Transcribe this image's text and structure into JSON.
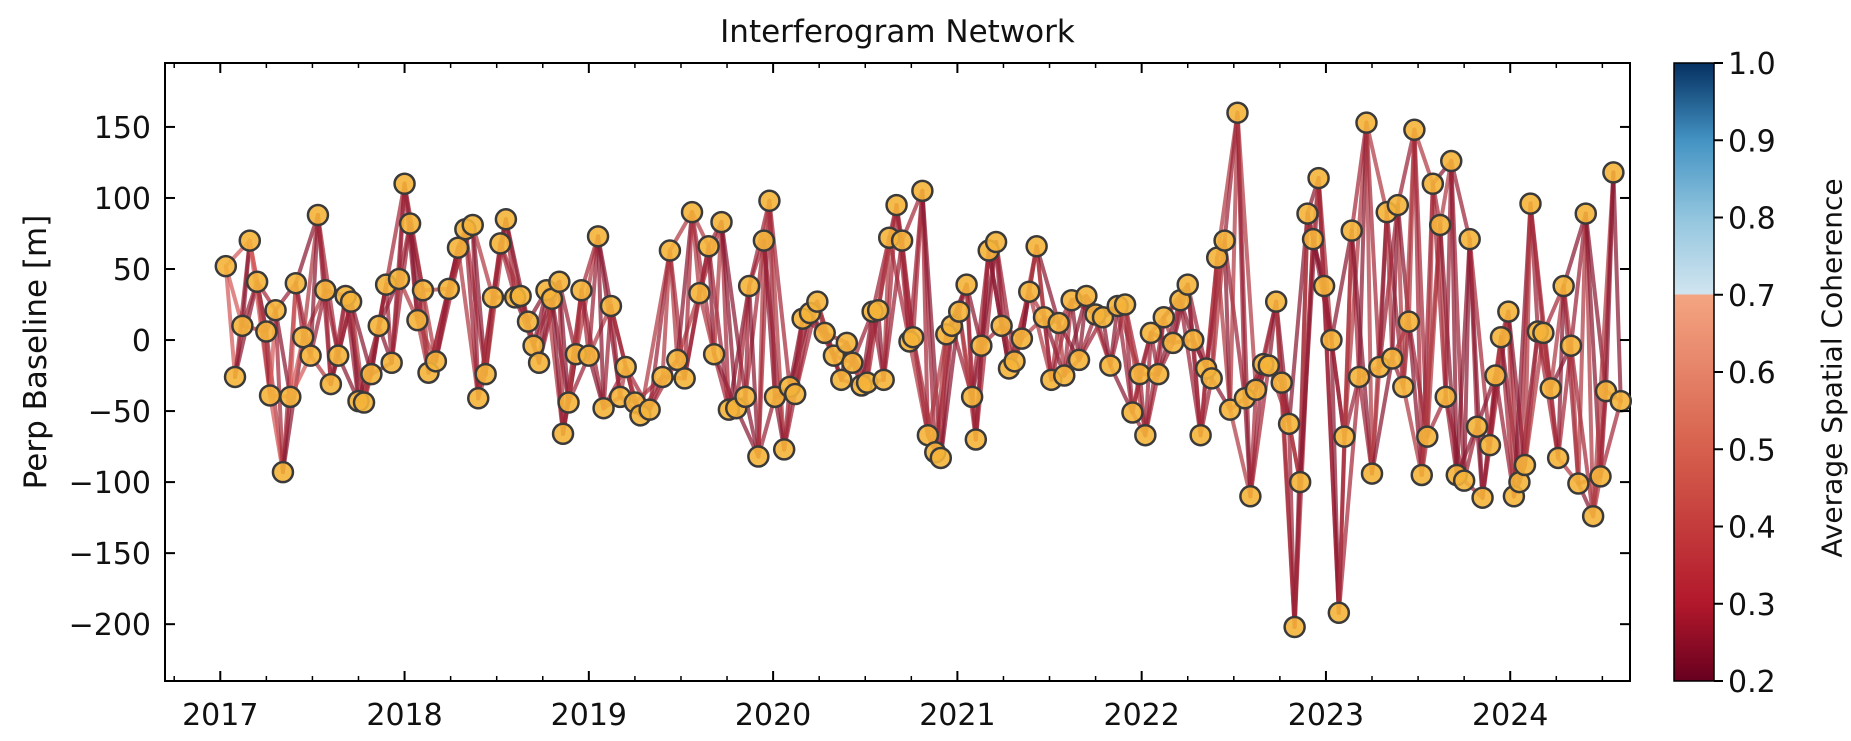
{
  "chart_data": {
    "type": "scatter",
    "title": "Interferogram Network",
    "xlabel": "",
    "ylabel": "Perp Baseline [m]",
    "xlim": [
      2016.7,
      2024.65
    ],
    "ylim": [
      -240,
      195
    ],
    "xticks": [
      2017,
      2018,
      2019,
      2020,
      2021,
      2022,
      2023,
      2024
    ],
    "yticks": [
      150,
      100,
      50,
      0,
      -50,
      -100,
      -150,
      -200
    ],
    "colorbar": {
      "label": "Average Spatial Coherence",
      "range": [
        0.2,
        1.0
      ],
      "ticks": [
        "1.0",
        "0.9",
        "0.8",
        "0.7",
        "0.6",
        "0.5",
        "0.4",
        "0.3",
        "0.2"
      ],
      "visible_range": [
        0.2,
        0.7
      ]
    },
    "node_color": "#f5b43a",
    "node_edge": "#3a3a3a",
    "points": [
      [
        2017.03,
        52
      ],
      [
        2017.08,
        -26
      ],
      [
        2017.12,
        10
      ],
      [
        2017.16,
        70
      ],
      [
        2017.2,
        41
      ],
      [
        2017.25,
        6
      ],
      [
        2017.27,
        -39
      ],
      [
        2017.3,
        21
      ],
      [
        2017.34,
        -93
      ],
      [
        2017.38,
        -40
      ],
      [
        2017.41,
        40
      ],
      [
        2017.45,
        2
      ],
      [
        2017.49,
        -11
      ],
      [
        2017.53,
        88
      ],
      [
        2017.57,
        35
      ],
      [
        2017.6,
        -31
      ],
      [
        2017.64,
        -11
      ],
      [
        2017.68,
        31
      ],
      [
        2017.71,
        27
      ],
      [
        2017.75,
        -43
      ],
      [
        2017.78,
        -44
      ],
      [
        2017.82,
        -24
      ],
      [
        2017.86,
        10
      ],
      [
        2017.9,
        39
      ],
      [
        2017.93,
        -16
      ],
      [
        2017.97,
        43
      ],
      [
        2018.0,
        110
      ],
      [
        2018.03,
        82
      ],
      [
        2018.07,
        14
      ],
      [
        2018.1,
        35
      ],
      [
        2018.13,
        -23
      ],
      [
        2018.17,
        -15
      ],
      [
        2018.24,
        36
      ],
      [
        2018.29,
        65
      ],
      [
        2018.33,
        78
      ],
      [
        2018.37,
        81
      ],
      [
        2018.4,
        -41
      ],
      [
        2018.44,
        -24
      ],
      [
        2018.48,
        30
      ],
      [
        2018.52,
        68
      ],
      [
        2018.55,
        85
      ],
      [
        2018.6,
        30
      ],
      [
        2018.63,
        31
      ],
      [
        2018.67,
        13
      ],
      [
        2018.7,
        -4
      ],
      [
        2018.73,
        -16
      ],
      [
        2018.77,
        35
      ],
      [
        2018.8,
        29
      ],
      [
        2018.84,
        41
      ],
      [
        2018.86,
        -66
      ],
      [
        2018.89,
        -44
      ],
      [
        2018.93,
        -10
      ],
      [
        2018.96,
        35
      ],
      [
        2019.0,
        -11
      ],
      [
        2019.05,
        73
      ],
      [
        2019.08,
        -48
      ],
      [
        2019.12,
        24
      ],
      [
        2019.17,
        -40
      ],
      [
        2019.2,
        -19
      ],
      [
        2019.25,
        -44
      ],
      [
        2019.28,
        -53
      ],
      [
        2019.33,
        -49
      ],
      [
        2019.4,
        -26
      ],
      [
        2019.44,
        63
      ],
      [
        2019.48,
        -14
      ],
      [
        2019.52,
        -27
      ],
      [
        2019.56,
        90
      ],
      [
        2019.6,
        33
      ],
      [
        2019.65,
        66
      ],
      [
        2019.68,
        -10
      ],
      [
        2019.72,
        83
      ],
      [
        2019.76,
        -49
      ],
      [
        2019.8,
        -48
      ],
      [
        2019.85,
        -40
      ],
      [
        2019.87,
        38
      ],
      [
        2019.92,
        -82
      ],
      [
        2019.95,
        70
      ],
      [
        2019.98,
        98
      ],
      [
        2020.01,
        -40
      ],
      [
        2020.06,
        -77
      ],
      [
        2020.09,
        -33
      ],
      [
        2020.12,
        -38
      ],
      [
        2020.16,
        15
      ],
      [
        2020.2,
        19
      ],
      [
        2020.24,
        27
      ],
      [
        2020.28,
        5
      ],
      [
        2020.33,
        -11
      ],
      [
        2020.37,
        -28
      ],
      [
        2020.4,
        -2
      ],
      [
        2020.43,
        -16
      ],
      [
        2020.48,
        -32
      ],
      [
        2020.51,
        -30
      ],
      [
        2020.54,
        20
      ],
      [
        2020.57,
        21
      ],
      [
        2020.6,
        -28
      ],
      [
        2020.63,
        72
      ],
      [
        2020.67,
        95
      ],
      [
        2020.7,
        70
      ],
      [
        2020.74,
        -1
      ],
      [
        2020.76,
        2
      ],
      [
        2020.81,
        105
      ],
      [
        2020.84,
        -67
      ],
      [
        2020.88,
        -79
      ],
      [
        2020.91,
        -83
      ],
      [
        2020.94,
        4
      ],
      [
        2020.97,
        10
      ],
      [
        2021.01,
        20
      ],
      [
        2021.05,
        39
      ],
      [
        2021.08,
        -40
      ],
      [
        2021.1,
        -70
      ],
      [
        2021.13,
        -4
      ],
      [
        2021.17,
        63
      ],
      [
        2021.21,
        69
      ],
      [
        2021.24,
        10
      ],
      [
        2021.28,
        -20
      ],
      [
        2021.31,
        -15
      ],
      [
        2021.35,
        1
      ],
      [
        2021.39,
        34
      ],
      [
        2021.43,
        66
      ],
      [
        2021.47,
        16
      ],
      [
        2021.51,
        -28
      ],
      [
        2021.55,
        12
      ],
      [
        2021.58,
        -25
      ],
      [
        2021.62,
        28
      ],
      [
        2021.66,
        -14
      ],
      [
        2021.7,
        31
      ],
      [
        2021.75,
        18
      ],
      [
        2021.79,
        16
      ],
      [
        2021.83,
        -18
      ],
      [
        2021.87,
        24
      ],
      [
        2021.91,
        25
      ],
      [
        2021.95,
        -51
      ],
      [
        2021.99,
        -24
      ],
      [
        2022.02,
        -67
      ],
      [
        2022.05,
        5
      ],
      [
        2022.09,
        -24
      ],
      [
        2022.12,
        16
      ],
      [
        2022.17,
        -2
      ],
      [
        2022.21,
        28
      ],
      [
        2022.25,
        39
      ],
      [
        2022.28,
        0
      ],
      [
        2022.32,
        -67
      ],
      [
        2022.35,
        -20
      ],
      [
        2022.38,
        -27
      ],
      [
        2022.41,
        58
      ],
      [
        2022.45,
        70
      ],
      [
        2022.48,
        -49
      ],
      [
        2022.52,
        160
      ],
      [
        2022.56,
        -41
      ],
      [
        2022.59,
        -110
      ],
      [
        2022.62,
        -35
      ],
      [
        2022.66,
        -17
      ],
      [
        2022.69,
        -18
      ],
      [
        2022.73,
        27
      ],
      [
        2022.76,
        -30
      ],
      [
        2022.8,
        -59
      ],
      [
        2022.83,
        -202
      ],
      [
        2022.86,
        -100
      ],
      [
        2022.9,
        89
      ],
      [
        2022.93,
        71
      ],
      [
        2022.96,
        114
      ],
      [
        2022.99,
        38
      ],
      [
        2023.03,
        0
      ],
      [
        2023.07,
        -192
      ],
      [
        2023.1,
        -68
      ],
      [
        2023.14,
        77
      ],
      [
        2023.18,
        -26
      ],
      [
        2023.22,
        153
      ],
      [
        2023.25,
        -94
      ],
      [
        2023.29,
        -19
      ],
      [
        2023.33,
        90
      ],
      [
        2023.36,
        -13
      ],
      [
        2023.39,
        95
      ],
      [
        2023.42,
        -33
      ],
      [
        2023.45,
        13
      ],
      [
        2023.48,
        148
      ],
      [
        2023.52,
        -95
      ],
      [
        2023.55,
        -68
      ],
      [
        2023.58,
        110
      ],
      [
        2023.62,
        81
      ],
      [
        2023.65,
        -40
      ],
      [
        2023.68,
        126
      ],
      [
        2023.71,
        -95
      ],
      [
        2023.75,
        -99
      ],
      [
        2023.78,
        71
      ],
      [
        2023.82,
        -61
      ],
      [
        2023.85,
        -111
      ],
      [
        2023.89,
        -74
      ],
      [
        2023.92,
        -25
      ],
      [
        2023.95,
        2
      ],
      [
        2023.99,
        20
      ],
      [
        2024.02,
        -110
      ],
      [
        2024.05,
        -100
      ],
      [
        2024.08,
        -88
      ],
      [
        2024.11,
        96
      ],
      [
        2024.15,
        6
      ],
      [
        2024.18,
        5
      ],
      [
        2024.22,
        -34
      ],
      [
        2024.26,
        -83
      ],
      [
        2024.29,
        38
      ],
      [
        2024.33,
        -4
      ],
      [
        2024.37,
        -101
      ],
      [
        2024.41,
        89
      ],
      [
        2024.45,
        -124
      ],
      [
        2024.49,
        -96
      ],
      [
        2024.52,
        -36
      ],
      [
        2024.56,
        118
      ],
      [
        2024.6,
        -43
      ]
    ],
    "pair_strategy": "sequential-3"
  }
}
